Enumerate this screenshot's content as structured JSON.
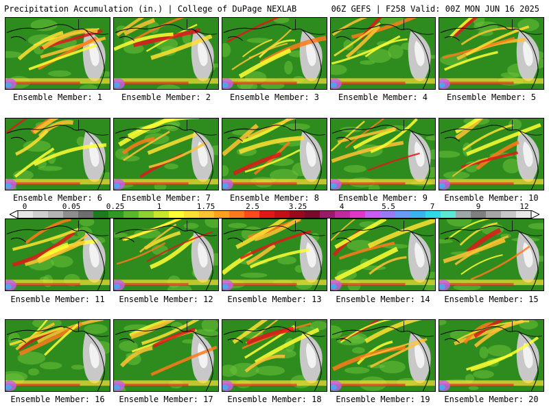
{
  "header": {
    "title": "Precipitation Accumulation (in.) | College of DuPage NEXLAB",
    "run_info": "06Z GEFS | F258 Valid: 00Z MON JUN 16 2025"
  },
  "panels": [
    {
      "label": "Ensemble Member: 1"
    },
    {
      "label": "Ensemble Member: 2"
    },
    {
      "label": "Ensemble Member: 3"
    },
    {
      "label": "Ensemble Member: 4"
    },
    {
      "label": "Ensemble Member: 5"
    },
    {
      "label": "Ensemble Member: 6"
    },
    {
      "label": "Ensemble Member: 7"
    },
    {
      "label": "Ensemble Member: 8"
    },
    {
      "label": "Ensemble Member: 9"
    },
    {
      "label": "Ensemble Member: 10"
    },
    {
      "label": "Ensemble Member: 11"
    },
    {
      "label": "Ensemble Member: 12"
    },
    {
      "label": "Ensemble Member: 13"
    },
    {
      "label": "Ensemble Member: 14"
    },
    {
      "label": "Ensemble Member: 15"
    },
    {
      "label": "Ensemble Member: 16"
    },
    {
      "label": "Ensemble Member: 17"
    },
    {
      "label": "Ensemble Member: 18"
    },
    {
      "label": "Ensemble Member: 19"
    },
    {
      "label": "Ensemble Member: 20"
    }
  ],
  "colorbar": {
    "tick_labels": [
      "0",
      "0.05",
      "0.25",
      "1",
      "1.75",
      "2.5",
      "3.25",
      "4",
      "5.5",
      "7",
      "9",
      "12"
    ],
    "colors": [
      "#e6e6e6",
      "#cfcfcf",
      "#b4b4b4",
      "#8e8e8e",
      "#6e6e6e",
      "#1e7a1e",
      "#2e9a22",
      "#59b82a",
      "#8fd12f",
      "#c8e62e",
      "#ffff33",
      "#ffe033",
      "#ffc233",
      "#ffa022",
      "#ff7a1a",
      "#ff4a1a",
      "#e0181a",
      "#c0101a",
      "#9a0a1a",
      "#7a0a2a",
      "#9a1a6a",
      "#c02a9a",
      "#e036c8",
      "#c85cf0",
      "#9a7af5",
      "#6a9af5",
      "#3ab4f0",
      "#30d8e8",
      "#5ae8d2",
      "#9aa8a8",
      "#7f7f7f",
      "#a6a6a6",
      "#c8c8c8",
      "#e8e8e8"
    ]
  }
}
